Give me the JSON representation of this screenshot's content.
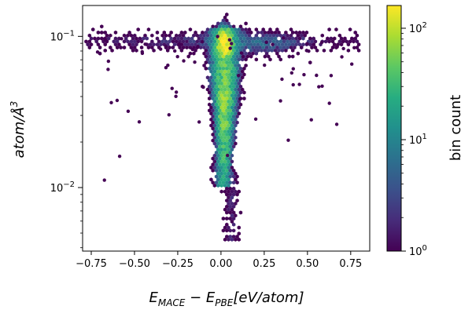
{
  "chart_data": {
    "type": "heatmap",
    "subtype": "hexbin",
    "xlabel": {
      "main": "E",
      "sub1": "MACE",
      "minus": " − ",
      "main2": "E",
      "sub2": "PBE",
      "unit": "[eV/atom]"
    },
    "ylabel": {
      "main": "atom/Å",
      "sup": "3"
    },
    "x_scale": "linear",
    "y_scale": "log",
    "xlim": [
      -0.8,
      0.86
    ],
    "ylim": [
      0.0038,
      0.16
    ],
    "x_ticks": [
      -0.75,
      -0.5,
      -0.25,
      0.0,
      0.25,
      0.5,
      0.75
    ],
    "x_tick_labels": [
      "−0.75",
      "−0.50",
      "−0.25",
      "0.00",
      "0.25",
      "0.50",
      "0.75"
    ],
    "y_ticks": [
      0.01,
      0.1
    ],
    "y_tick_labels": [
      {
        "base": "10",
        "exp": "−2"
      },
      {
        "base": "10",
        "exp": "−1"
      }
    ],
    "grid": false,
    "colormap": "viridis",
    "colorbar": {
      "label": "bin count",
      "scale": "log",
      "range": [
        1,
        160
      ],
      "ticks": [
        1,
        10,
        100
      ],
      "tick_labels": [
        {
          "base": "10",
          "exp": "0"
        },
        {
          "base": "10",
          "exp": "1"
        },
        {
          "base": "10",
          "exp": "2"
        }
      ]
    },
    "distribution": {
      "description_units": "x in eV/atom, y in atom/Å^3",
      "core": {
        "x_center": 0.02,
        "y_peak": 0.09,
        "y_low_end": 0.012
      },
      "horizontal_band": {
        "x_range": [
          -0.75,
          0.78
        ],
        "y_range": [
          0.065,
          0.115
        ]
      },
      "lower_tail": {
        "x_range": [
          -0.02,
          0.12
        ],
        "y_range": [
          0.0045,
          0.012
        ]
      },
      "max_count": 160
    }
  }
}
